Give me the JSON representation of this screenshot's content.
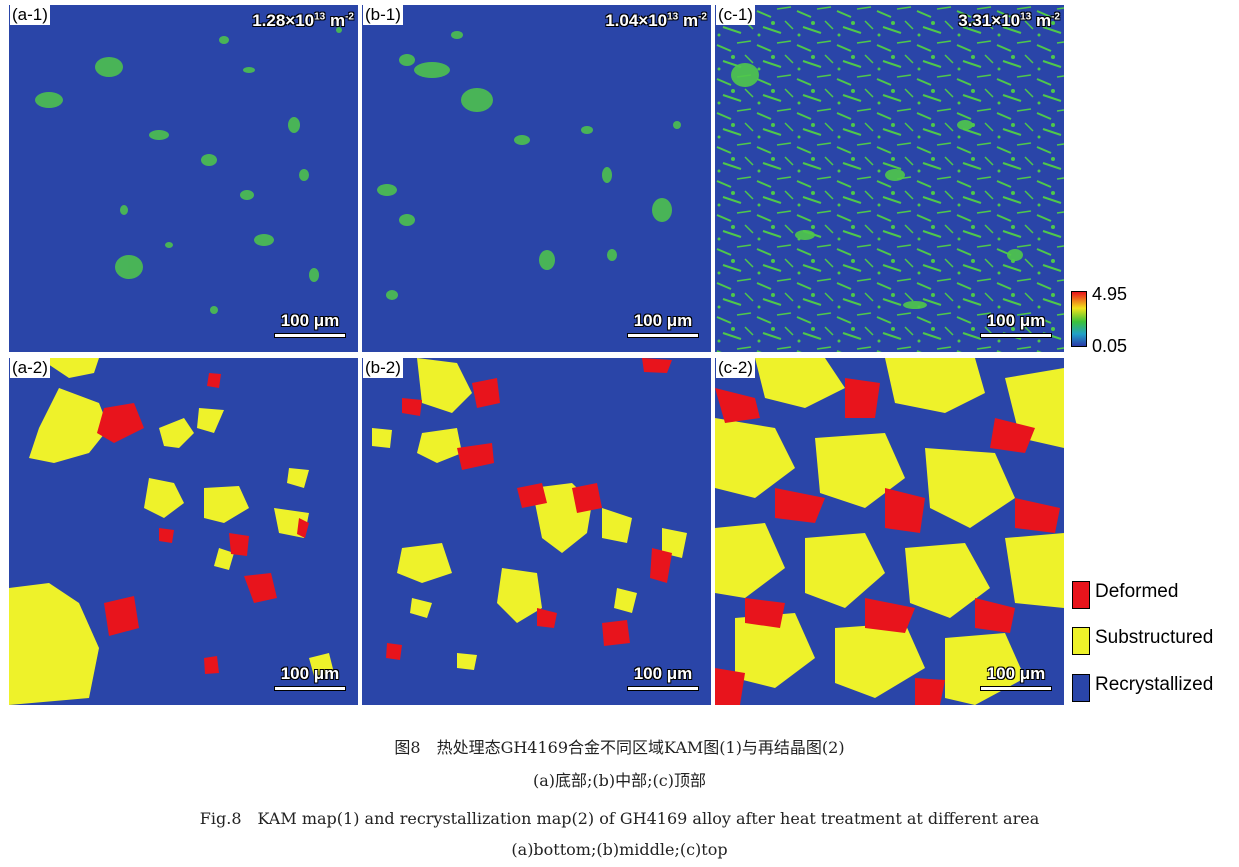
{
  "panels": {
    "a1": {
      "label": "(a-1)",
      "density_base": "1.28×10",
      "density_exp": "13",
      "density_unit": " m",
      "density_unit_exp": "-2",
      "scale": "100 μm"
    },
    "b1": {
      "label": "(b-1)",
      "density_base": "1.04×10",
      "density_exp": "13",
      "density_unit": " m",
      "density_unit_exp": "-2",
      "scale": "100 μm"
    },
    "c1": {
      "label": "(c-1)",
      "density_base": "3.31×10",
      "density_exp": "13",
      "density_unit": " m",
      "density_unit_exp": "-2",
      "scale": "100 μm"
    },
    "a2": {
      "label": "(a-2)",
      "scale": "100 μm"
    },
    "b2": {
      "label": "(b-2)",
      "scale": "100 μm"
    },
    "c2": {
      "label": "(c-2)",
      "scale": "100 μm"
    }
  },
  "colorbar": {
    "max": "4.95",
    "min": "0.05"
  },
  "legend": [
    {
      "label": "Deformed",
      "color": "#e8141c"
    },
    {
      "label": "Substructured",
      "color": "#eef22a"
    },
    {
      "label": "Recrystallized",
      "color": "#2a45a8"
    }
  ],
  "caption": {
    "cn_title": "图8　热处理态GH4169合金不同区域KAM图(1)与再结晶图(2)",
    "cn_sub": "(a)底部;(b)中部;(c)顶部",
    "en_title": "Fig.8　KAM map(1) and recrystallization map(2) of GH4169 alloy after heat treatment at different area",
    "en_sub": "(a)bottom;(b)middle;(c)top"
  }
}
